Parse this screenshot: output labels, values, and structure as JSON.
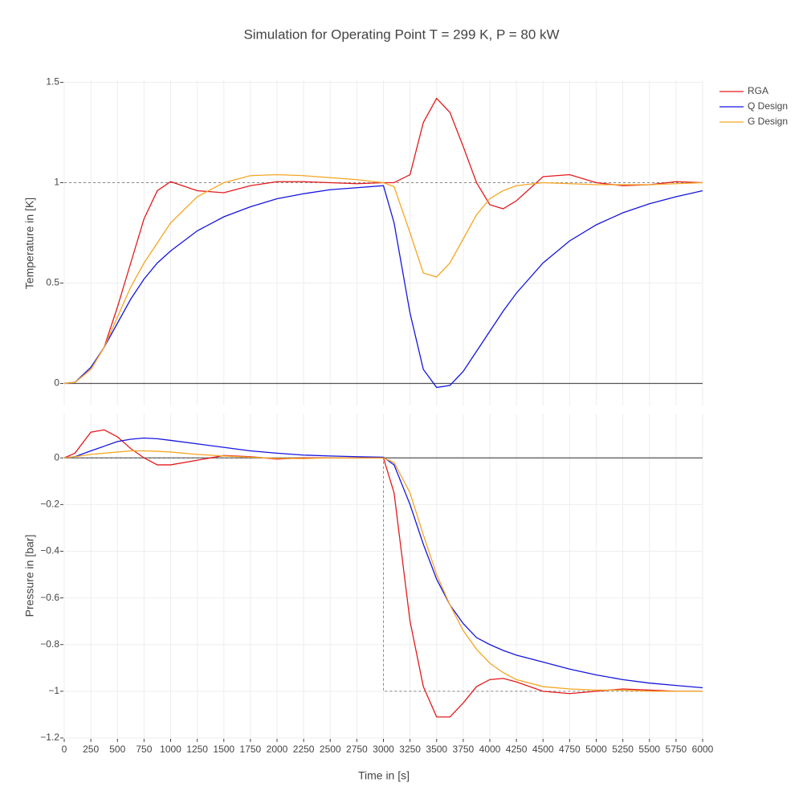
{
  "chart_data": [
    {
      "type": "line",
      "title": "Simulation for Operating Point T = 299 K, P = 80 kW",
      "ylabel": "Temperature in [K]",
      "x": [
        0,
        100,
        250,
        375,
        500,
        625,
        750,
        875,
        1000,
        1250,
        1500,
        1750,
        2000,
        2250,
        2500,
        2750,
        3000,
        3100,
        3250,
        3375,
        3500,
        3625,
        3750,
        3875,
        4000,
        4125,
        4250,
        4500,
        4750,
        5000,
        5250,
        5500,
        5750,
        6000
      ],
      "series": [
        {
          "name": "RGA",
          "color": "#e31a1c",
          "values": [
            0,
            0.005,
            0.07,
            0.18,
            0.38,
            0.6,
            0.82,
            0.96,
            1.005,
            0.96,
            0.95,
            0.985,
            1.005,
            1.005,
            1.0,
            0.995,
            1.0,
            1.0,
            1.04,
            1.3,
            1.42,
            1.35,
            1.18,
            1.0,
            0.89,
            0.87,
            0.91,
            1.03,
            1.04,
            1.0,
            0.985,
            0.99,
            1.005,
            1.0
          ]
        },
        {
          "name": "Q Design",
          "color": "#1515e0",
          "values": [
            0,
            0.005,
            0.08,
            0.18,
            0.3,
            0.42,
            0.52,
            0.6,
            0.66,
            0.76,
            0.83,
            0.88,
            0.92,
            0.945,
            0.965,
            0.975,
            0.985,
            0.8,
            0.35,
            0.07,
            -0.02,
            -0.01,
            0.06,
            0.16,
            0.26,
            0.36,
            0.45,
            0.6,
            0.71,
            0.79,
            0.85,
            0.895,
            0.93,
            0.96
          ]
        },
        {
          "name": "G Design",
          "color": "#f5a623",
          "values": [
            0,
            0.005,
            0.07,
            0.18,
            0.33,
            0.48,
            0.6,
            0.7,
            0.8,
            0.93,
            1.0,
            1.035,
            1.04,
            1.035,
            1.025,
            1.015,
            1.0,
            0.98,
            0.75,
            0.55,
            0.53,
            0.6,
            0.72,
            0.84,
            0.92,
            0.96,
            0.985,
            1.0,
            0.995,
            0.99,
            0.99,
            0.99,
            0.995,
            1.0
          ]
        }
      ],
      "reference": {
        "x": [
          0,
          6000
        ],
        "values": [
          1,
          1
        ]
      },
      "xlim": [
        0,
        6000
      ],
      "ylim": [
        -0.11,
        1.51
      ],
      "yticks": [
        0,
        0.5,
        1,
        1.5
      ],
      "grid": true,
      "legend": "right"
    },
    {
      "type": "line",
      "xlabel": "Time in [s]",
      "ylabel": "Pressure in [bar]",
      "x": [
        0,
        100,
        250,
        375,
        500,
        625,
        750,
        875,
        1000,
        1250,
        1500,
        1750,
        2000,
        2250,
        2500,
        2750,
        3000,
        3100,
        3250,
        3375,
        3500,
        3625,
        3750,
        3875,
        4000,
        4125,
        4250,
        4500,
        4750,
        5000,
        5250,
        5500,
        5750,
        6000
      ],
      "series": [
        {
          "color": "#e31a1c",
          "values": [
            0,
            0.02,
            0.11,
            0.12,
            0.09,
            0.04,
            0.0,
            -0.03,
            -0.03,
            -0.01,
            0.01,
            0.005,
            -0.005,
            0,
            0,
            0,
            0,
            -0.15,
            -0.7,
            -0.98,
            -1.11,
            -1.11,
            -1.05,
            -0.98,
            -0.95,
            -0.945,
            -0.96,
            -1.0,
            -1.01,
            -1.0,
            -0.99,
            -0.995,
            -1.0,
            -1.0
          ]
        },
        {
          "color": "#1515e0",
          "values": [
            0,
            0.005,
            0.03,
            0.05,
            0.07,
            0.08,
            0.085,
            0.082,
            0.075,
            0.06,
            0.045,
            0.03,
            0.02,
            0.012,
            0.008,
            0.005,
            0.003,
            -0.03,
            -0.2,
            -0.37,
            -0.52,
            -0.63,
            -0.71,
            -0.77,
            -0.8,
            -0.825,
            -0.845,
            -0.875,
            -0.905,
            -0.93,
            -0.95,
            -0.965,
            -0.975,
            -0.985
          ]
        },
        {
          "color": "#f5a623",
          "values": [
            0,
            0.005,
            0.015,
            0.02,
            0.025,
            0.03,
            0.03,
            0.028,
            0.025,
            0.015,
            0.008,
            0.003,
            -0.002,
            -0.003,
            0,
            0,
            0,
            -0.02,
            -0.15,
            -0.33,
            -0.5,
            -0.63,
            -0.74,
            -0.82,
            -0.88,
            -0.92,
            -0.95,
            -0.98,
            -0.99,
            -0.995,
            -0.995,
            -1.0,
            -1.0,
            -1.0
          ]
        }
      ],
      "reference": {
        "x": [
          0,
          3000,
          3000,
          6000
        ],
        "values": [
          0,
          0,
          -1,
          -1
        ]
      },
      "xlim": [
        0,
        6000
      ],
      "ylim": [
        -1.2,
        0.19
      ],
      "yticks": [
        0,
        {
          "value": -0.2,
          "label": "−0.2"
        },
        {
          "value": -0.4,
          "label": "−0.4"
        },
        {
          "value": -0.6,
          "label": "−0.6"
        },
        {
          "value": -0.8,
          "label": "−0.8"
        },
        {
          "value": -1,
          "label": "−1"
        },
        {
          "value": -1.2,
          "label": "−1.2"
        }
      ],
      "xticks": [
        0,
        250,
        500,
        750,
        1000,
        1250,
        1500,
        1750,
        2000,
        2250,
        2500,
        2750,
        3000,
        3250,
        3500,
        3750,
        4000,
        4250,
        4500,
        4750,
        5000,
        5250,
        5500,
        5750,
        6000
      ],
      "grid": true
    }
  ]
}
